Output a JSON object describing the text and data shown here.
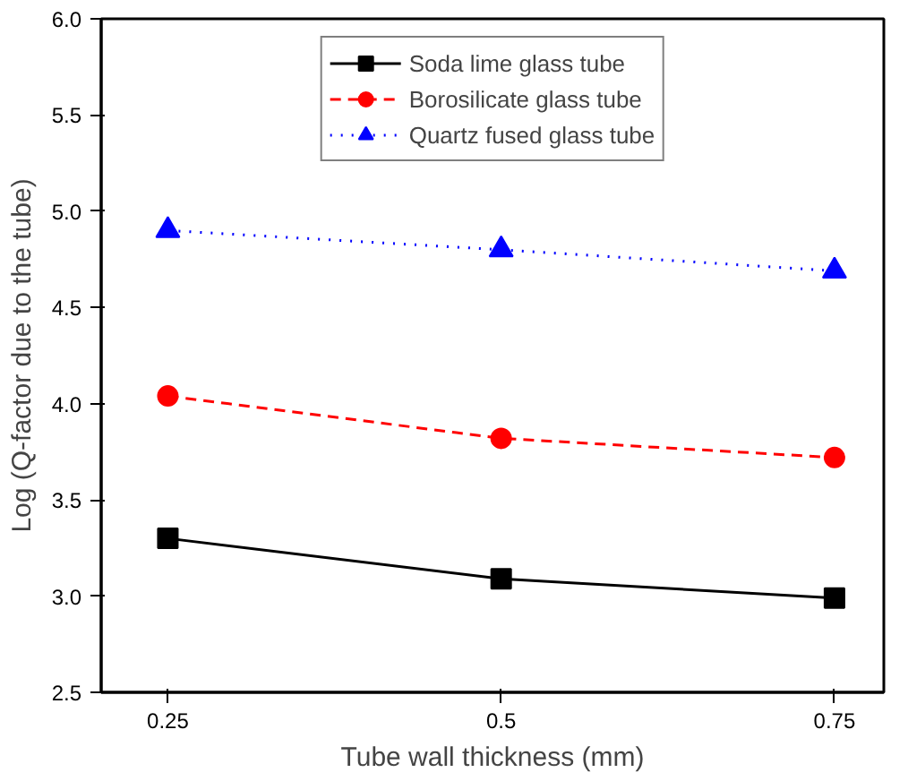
{
  "chart_data": {
    "type": "line",
    "xlabel": "Tube wall thickness (mm)",
    "ylabel": "Log (Q-factor due to the tube)",
    "x": [
      0.25,
      0.5,
      0.75
    ],
    "xlim": [
      0.2,
      0.787
    ],
    "xticks": [
      0.25,
      0.5,
      0.75
    ],
    "ylim": [
      2.5,
      6.0
    ],
    "yticks": [
      {
        "value": 2.5,
        "label": "2.5"
      },
      {
        "value": 3,
        "label": "3.0"
      },
      {
        "value": 3.5,
        "label": "3.5"
      },
      {
        "value": 4,
        "label": "4.0"
      },
      {
        "value": 4.5,
        "label": "4.5"
      },
      {
        "value": 5,
        "label": "5.0"
      },
      {
        "value": 5.5,
        "label": "5.5"
      },
      {
        "value": 6,
        "label": "6.0"
      }
    ],
    "grid": false,
    "legend": "top",
    "series": [
      {
        "name": "Soda lime glass tube",
        "color": "#000000",
        "marker": "square",
        "line_style": "solid",
        "values": [
          3.3,
          3.09,
          2.99
        ]
      },
      {
        "name": "Borosilicate glass tube",
        "color": "#ff0000",
        "marker": "circle",
        "line_style": "dashed",
        "values": [
          4.04,
          3.82,
          3.72
        ]
      },
      {
        "name": "Quartz fused glass tube",
        "color": "#0000ff",
        "marker": "triangle",
        "line_style": "dotted",
        "values": [
          4.9,
          4.8,
          4.69
        ]
      }
    ]
  }
}
